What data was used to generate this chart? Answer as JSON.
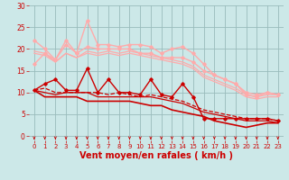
{
  "bg_color": "#cce8e8",
  "grid_color": "#99bbbb",
  "xlabel": "Vent moyen/en rafales ( km/h )",
  "xlabel_color": "#cc0000",
  "xlabel_fontsize": 7,
  "tick_color": "#cc0000",
  "x_max": 24,
  "y_min": 0,
  "y_max": 30,
  "y_ticks": [
    0,
    5,
    10,
    15,
    20,
    25,
    30
  ],
  "x_ticks": [
    0,
    1,
    2,
    3,
    4,
    5,
    6,
    7,
    8,
    9,
    10,
    11,
    12,
    13,
    14,
    15,
    16,
    17,
    18,
    19,
    20,
    21,
    22,
    23
  ],
  "series": [
    {
      "x": [
        0,
        1,
        2,
        3,
        4,
        5,
        6,
        7,
        8,
        9,
        10,
        11,
        12,
        13,
        14,
        15,
        16,
        17,
        18,
        19,
        20,
        21,
        22,
        23
      ],
      "y": [
        10.5,
        12,
        13,
        10.5,
        10.5,
        15.5,
        10,
        13,
        10,
        10,
        9.5,
        13,
        9.5,
        9,
        12,
        9,
        4,
        4,
        4,
        4,
        4,
        4,
        4,
        3.5
      ],
      "color": "#cc0000",
      "lw": 1.0,
      "marker": "D",
      "ms": 1.8,
      "zorder": 5,
      "linestyle": "-"
    },
    {
      "x": [
        0,
        1,
        2,
        3,
        4,
        5,
        6,
        7,
        8,
        9,
        10,
        11,
        12,
        13,
        14,
        15,
        16,
        17,
        18,
        19,
        20,
        21,
        22,
        23
      ],
      "y": [
        10.5,
        11,
        10,
        10,
        10,
        10,
        10,
        9.5,
        10,
        9.5,
        9,
        9.5,
        9,
        8.5,
        8,
        7,
        6,
        5.5,
        5,
        4.5,
        4,
        4,
        4,
        3.5
      ],
      "color": "#cc0000",
      "lw": 0.9,
      "marker": null,
      "ms": 0,
      "zorder": 4,
      "linestyle": "--"
    },
    {
      "x": [
        0,
        1,
        2,
        3,
        4,
        5,
        6,
        7,
        8,
        9,
        10,
        11,
        12,
        13,
        14,
        15,
        16,
        17,
        18,
        19,
        20,
        21,
        22,
        23
      ],
      "y": [
        10.5,
        10,
        9.5,
        10,
        10,
        10,
        9,
        9,
        9,
        9,
        9,
        9,
        8.5,
        8,
        7.5,
        6.5,
        5.5,
        5,
        4.5,
        4,
        3.5,
        3.5,
        3.5,
        3
      ],
      "color": "#cc0000",
      "lw": 0.9,
      "marker": null,
      "ms": 0,
      "zorder": 4,
      "linestyle": "-"
    },
    {
      "x": [
        0,
        1,
        2,
        3,
        4,
        5,
        6,
        7,
        8,
        9,
        10,
        11,
        12,
        13,
        14,
        15,
        16,
        17,
        18,
        19,
        20,
        21,
        22,
        23
      ],
      "y": [
        10.5,
        9,
        9,
        9,
        9,
        8,
        8,
        8,
        8,
        8,
        7.5,
        7,
        7,
        6,
        5.5,
        5,
        4.5,
        3.5,
        3,
        2.5,
        2,
        2.5,
        3,
        3
      ],
      "color": "#cc0000",
      "lw": 1.2,
      "marker": null,
      "ms": 0,
      "zorder": 4,
      "linestyle": "-"
    },
    {
      "x": [
        0,
        1,
        2,
        3,
        4,
        5,
        6,
        7,
        8,
        9,
        10,
        11,
        12,
        13,
        14,
        15,
        16,
        17,
        18,
        19,
        20,
        21,
        22,
        23
      ],
      "y": [
        16.5,
        19,
        17.5,
        22,
        19,
        26.5,
        21,
        21,
        20.5,
        21,
        21,
        20.5,
        19,
        20,
        20.5,
        19,
        16.5,
        14,
        13,
        12,
        9.5,
        9,
        10,
        9.5
      ],
      "color": "#ffaaaa",
      "lw": 1.0,
      "marker": "D",
      "ms": 1.8,
      "zorder": 3,
      "linestyle": "-"
    },
    {
      "x": [
        0,
        1,
        2,
        3,
        4,
        5,
        6,
        7,
        8,
        9,
        10,
        11,
        12,
        13,
        14,
        15,
        16,
        17,
        18,
        19,
        20,
        21,
        22,
        23
      ],
      "y": [
        22,
        20,
        17.5,
        21,
        19,
        20.5,
        20,
        20,
        20,
        20,
        19,
        19,
        18,
        18,
        18,
        17,
        15,
        14,
        13,
        12,
        10,
        9.5,
        10,
        9.5
      ],
      "color": "#ffaaaa",
      "lw": 1.0,
      "marker": "D",
      "ms": 1.8,
      "zorder": 3,
      "linestyle": "-"
    },
    {
      "x": [
        0,
        1,
        2,
        3,
        4,
        5,
        6,
        7,
        8,
        9,
        10,
        11,
        12,
        13,
        14,
        15,
        16,
        17,
        18,
        19,
        20,
        21,
        22,
        23
      ],
      "y": [
        19.5,
        19,
        17,
        19,
        18,
        19.5,
        19,
        19.5,
        19,
        19.5,
        19,
        18.5,
        18,
        17.5,
        17,
        16,
        14,
        13,
        12,
        11,
        9.5,
        9,
        9.5,
        9.5
      ],
      "color": "#ffaaaa",
      "lw": 0.9,
      "marker": null,
      "ms": 0,
      "zorder": 3,
      "linestyle": "-"
    },
    {
      "x": [
        0,
        1,
        2,
        3,
        4,
        5,
        6,
        7,
        8,
        9,
        10,
        11,
        12,
        13,
        14,
        15,
        16,
        17,
        18,
        19,
        20,
        21,
        22,
        23
      ],
      "y": [
        19,
        18.5,
        17,
        19,
        18,
        19,
        18.5,
        19,
        18.5,
        19,
        18.5,
        18,
        17.5,
        17,
        16.5,
        15.5,
        13.5,
        12.5,
        11.5,
        10.5,
        9,
        8.5,
        9,
        9
      ],
      "color": "#ffaaaa",
      "lw": 0.9,
      "marker": null,
      "ms": 0,
      "zorder": 2,
      "linestyle": "-"
    }
  ],
  "arrow_color": "#cc0000",
  "arrow_size": 5.0
}
